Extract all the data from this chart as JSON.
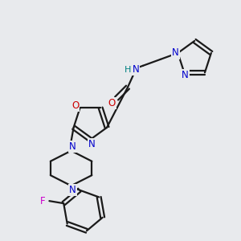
{
  "background_color": "#e8eaed",
  "bond_color": "#1a1a1a",
  "oxygen_color": "#cc0000",
  "nitrogen_color": "#0000cc",
  "fluorine_color": "#cc00cc",
  "h_label_color": "#008080",
  "line_width": 1.6,
  "figsize": [
    3.0,
    3.0
  ],
  "dpi": 100,
  "xlim": [
    0,
    300
  ],
  "ylim": [
    0,
    300
  ]
}
